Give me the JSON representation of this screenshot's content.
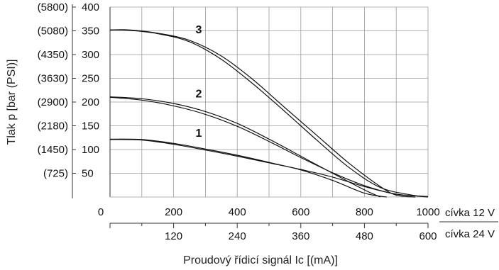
{
  "chart_data": {
    "type": "line",
    "title": "",
    "ylabel": "Tlak p [bar (PSI)]",
    "xlabel": "Proudový řídicí signál Ic [(mA)]",
    "ylim": [
      0,
      400
    ],
    "y_ticks": [
      {
        "bar": "400",
        "psi": "(5800)",
        "v": 400
      },
      {
        "bar": "350",
        "psi": "(5080)",
        "v": 350
      },
      {
        "bar": "300",
        "psi": "(4350)",
        "v": 300
      },
      {
        "bar": "250",
        "psi": "(3630)",
        "v": 250
      },
      {
        "bar": "200",
        "psi": "(2900)",
        "v": 200
      },
      {
        "bar": "150",
        "psi": "(2180)",
        "v": 150
      },
      {
        "bar": "100",
        "psi": "(1450)",
        "v": 100
      },
      {
        "bar": "50",
        "psi": "(725)",
        "v": 50
      }
    ],
    "x_axis_12v": {
      "label": "cívka 12 V",
      "range": [
        0,
        1000
      ],
      "ticks": [
        {
          "v": 0,
          "t": "0"
        },
        {
          "v": 200,
          "t": "200"
        },
        {
          "v": 400,
          "t": "400"
        },
        {
          "v": 600,
          "t": "600"
        },
        {
          "v": 800,
          "t": "800"
        },
        {
          "v": 1000,
          "t": "1000"
        }
      ]
    },
    "x_axis_24v": {
      "label": "cívka 24 V",
      "range": [
        0,
        600
      ],
      "ticks": [
        {
          "v": 120,
          "t": "120"
        },
        {
          "v": 240,
          "t": "240"
        },
        {
          "v": 360,
          "t": "360"
        },
        {
          "v": 480,
          "t": "480"
        },
        {
          "v": 600,
          "t": "600"
        }
      ]
    },
    "grid": true,
    "series": [
      {
        "name": "1",
        "label_at": [
          260,
          127
        ],
        "lines": [
          [
            [
              0,
              122
            ],
            [
              100,
              121
            ],
            [
              200,
              113
            ],
            [
              300,
              101
            ],
            [
              400,
              88
            ],
            [
              500,
              73
            ],
            [
              600,
              57
            ],
            [
              700,
              35
            ],
            [
              800,
              8
            ],
            [
              870,
              0
            ]
          ],
          [
            [
              0,
              121
            ],
            [
              100,
              120
            ],
            [
              200,
              111
            ],
            [
              300,
              99
            ],
            [
              400,
              86
            ],
            [
              500,
              72
            ],
            [
              600,
              58
            ],
            [
              700,
              42
            ],
            [
              800,
              22
            ],
            [
              900,
              6
            ],
            [
              1000,
              1
            ]
          ]
        ]
      },
      {
        "name": "2",
        "label_at": [
          260,
          210
        ],
        "lines": [
          [
            [
              0,
              211
            ],
            [
              100,
              207
            ],
            [
              200,
              197
            ],
            [
              300,
              180
            ],
            [
              400,
              155
            ],
            [
              500,
              122
            ],
            [
              600,
              86
            ],
            [
              700,
              50
            ],
            [
              800,
              15
            ],
            [
              850,
              0
            ]
          ],
          [
            [
              0,
              210
            ],
            [
              100,
              204
            ],
            [
              200,
              192
            ],
            [
              300,
              174
            ],
            [
              400,
              149
            ],
            [
              500,
              117
            ],
            [
              600,
              83
            ],
            [
              700,
              51
            ],
            [
              800,
              24
            ],
            [
              900,
              6
            ],
            [
              1000,
              1
            ]
          ]
        ]
      },
      {
        "name": "3",
        "label_at": [
          260,
          345
        ],
        "lines": [
          [
            [
              0,
              352
            ],
            [
              60,
              352
            ],
            [
              150,
              345
            ],
            [
              250,
              330
            ],
            [
              350,
              297
            ],
            [
              450,
              247
            ],
            [
              550,
              188
            ],
            [
              650,
              130
            ],
            [
              750,
              72
            ],
            [
              850,
              22
            ],
            [
              900,
              4
            ],
            [
              960,
              0
            ]
          ],
          [
            [
              0,
              352
            ],
            [
              60,
              351
            ],
            [
              150,
              344
            ],
            [
              250,
              327
            ],
            [
              350,
              290
            ],
            [
              450,
              238
            ],
            [
              550,
              180
            ],
            [
              650,
              120
            ],
            [
              750,
              63
            ],
            [
              850,
              20
            ],
            [
              950,
              4
            ],
            [
              1000,
              0
            ]
          ]
        ]
      }
    ]
  }
}
